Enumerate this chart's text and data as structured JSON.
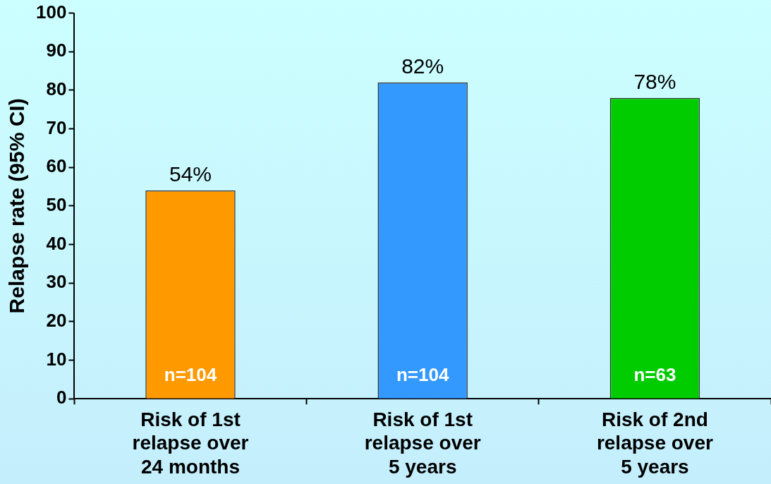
{
  "chart_data": {
    "type": "bar",
    "ylabel": "Relapse rate (95% CI)",
    "categories": [
      "Risk of 1st relapse over 24 months",
      "Risk of 1st relapse over 5 years",
      "Risk of 2nd relapse over 5 years"
    ],
    "values": [
      54,
      82,
      78
    ],
    "colors": [
      "#ff9900",
      "#3399ff",
      "#00cc00"
    ],
    "value_labels": [
      "54%",
      "82%",
      "78%"
    ],
    "annotations": [
      "n=104",
      "n=104",
      "n=63"
    ],
    "ylim": [
      0,
      100
    ],
    "yticks": [
      0,
      10,
      20,
      30,
      40,
      50,
      60,
      70,
      80,
      90,
      100
    ],
    "grid": false,
    "legend": false
  }
}
